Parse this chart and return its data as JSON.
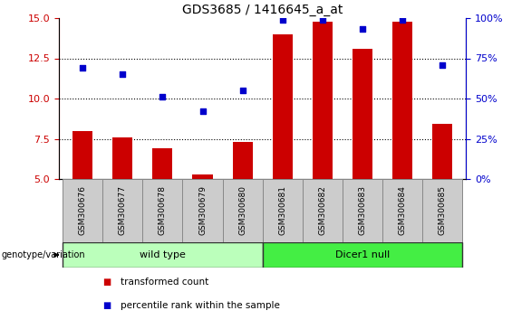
{
  "title": "GDS3685 / 1416645_a_at",
  "samples": [
    "GSM300676",
    "GSM300677",
    "GSM300678",
    "GSM300679",
    "GSM300680",
    "GSM300681",
    "GSM300682",
    "GSM300683",
    "GSM300684",
    "GSM300685"
  ],
  "transformed_count": [
    8.0,
    7.6,
    6.9,
    5.3,
    7.3,
    14.0,
    14.8,
    13.1,
    14.8,
    8.4
  ],
  "percentile_rank": [
    69,
    65,
    51,
    42,
    55,
    99,
    99,
    93,
    99,
    71
  ],
  "bar_color": "#cc0000",
  "dot_color": "#0000cc",
  "ylim_left": [
    5,
    15
  ],
  "ylim_right": [
    0,
    100
  ],
  "yticks_left": [
    5,
    7.5,
    10,
    12.5,
    15
  ],
  "yticks_right": [
    0,
    25,
    50,
    75,
    100
  ],
  "ytick_labels_right": [
    "0%",
    "25%",
    "50%",
    "75%",
    "100%"
  ],
  "grid_lines": [
    7.5,
    10,
    12.5
  ],
  "groups": [
    {
      "label": "wild type",
      "start": 0,
      "end": 5,
      "color": "#bbffbb"
    },
    {
      "label": "Dicer1 null",
      "start": 5,
      "end": 10,
      "color": "#44ee44"
    }
  ],
  "group_row_label": "genotype/variation",
  "legend": [
    {
      "color": "#cc0000",
      "label": "transformed count"
    },
    {
      "color": "#0000cc",
      "label": "percentile rank within the sample"
    }
  ],
  "tick_label_color_left": "#cc0000",
  "tick_label_color_right": "#0000cc",
  "sample_box_color": "#cccccc",
  "title_fontsize": 10,
  "bar_width": 0.5
}
